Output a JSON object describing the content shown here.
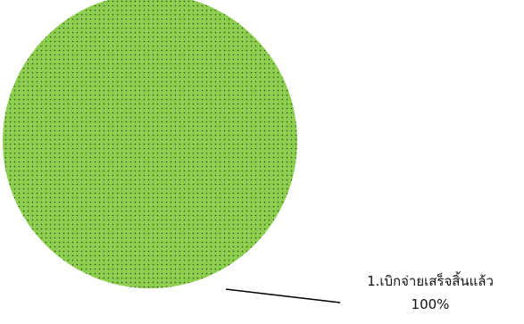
{
  "chart_data": {
    "type": "pie",
    "title": "",
    "slices": [
      {
        "label": "1.เบิกจ่ายเสร็จสิ้นแล้ว",
        "value": 100,
        "value_label": "100%",
        "color": "#8ccf4f",
        "pattern": "dotted"
      }
    ],
    "legend": "none",
    "data_labels": "outside with leader line"
  }
}
